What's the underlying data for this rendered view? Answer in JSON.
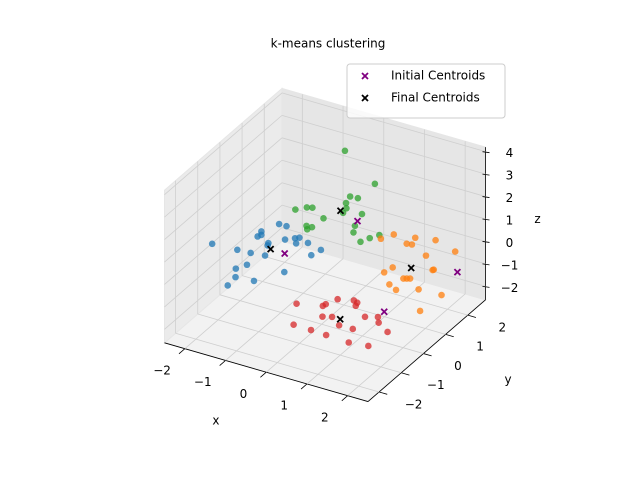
{
  "chart_data": {
    "type": "scatter3d",
    "title": "k-means clustering",
    "xlabel": "x",
    "ylabel": "y",
    "zlabel": "z",
    "xlim": [
      -2.5,
      2.5
    ],
    "ylim": [
      -2.5,
      2.8
    ],
    "zlim": [
      -2.6,
      4.2
    ],
    "xticks": [
      {
        "value": -2,
        "label": "−2"
      },
      {
        "value": -1,
        "label": "−1"
      },
      0,
      1,
      2
    ],
    "yticks": [
      {
        "value": -2,
        "label": "−2"
      },
      {
        "value": -1,
        "label": "−1"
      },
      0,
      1,
      2
    ],
    "zticks": [
      {
        "value": -2,
        "label": "−2"
      },
      {
        "value": -1,
        "label": "−1"
      },
      0,
      1,
      2,
      3,
      4
    ],
    "grid": true,
    "legend": "upper right",
    "series": [
      {
        "color": "#1f77b4",
        "marker": "o",
        "x": [
          -1.8,
          -1.5,
          -1.2,
          -0.9,
          -2.0,
          -1.3,
          -0.7,
          -1.6,
          -1.1,
          -0.5,
          -1.9,
          -1.4,
          -0.8,
          -1.0,
          -1.7,
          -0.6,
          -1.2,
          -2.2,
          -1.5,
          -0.9,
          -1.3,
          -0.4,
          -1.8,
          -1.1
        ],
        "y": [
          -0.5,
          0.2,
          -1.0,
          0.5,
          -0.2,
          0.8,
          -0.4,
          -1.3,
          0.1,
          0.3,
          0.6,
          -0.8,
          1.0,
          -0.6,
          0.4,
          -0.1,
          1.2,
          -0.9,
          -0.3,
          0.0,
          -1.5,
          0.7,
          0.9,
          -0.7
        ],
        "z": [
          0.2,
          -0.5,
          0.8,
          0.1,
          -1.0,
          0.4,
          -0.3,
          -0.6,
          1.2,
          0.5,
          -0.2,
          0.0,
          -0.8,
          0.9,
          0.3,
          1.0,
          -0.4,
          0.6,
          -1.2,
          0.7,
          0.1,
          -0.1,
          -0.7,
          1.4
        ]
      },
      {
        "color": "#2ca02c",
        "marker": "o",
        "x": [
          -0.5,
          0.0,
          -0.8,
          0.3,
          -0.2,
          -1.0,
          0.5,
          -0.4,
          0.1,
          -0.7,
          0.2,
          -0.1,
          -0.6,
          0.4,
          -0.3,
          -0.9,
          0.0,
          -1.3,
          0.6,
          -0.5
        ],
        "y": [
          1.0,
          1.5,
          0.8,
          1.2,
          2.0,
          1.4,
          0.9,
          1.7,
          1.1,
          0.6,
          1.8,
          1.3,
          2.2,
          0.7,
          1.6,
          1.0,
          2.4,
          1.2,
          1.5,
          0.5
        ],
        "z": [
          1.0,
          0.5,
          1.5,
          0.2,
          1.2,
          0.0,
          1.8,
          0.7,
          2.2,
          0.9,
          -0.2,
          1.4,
          0.6,
          1.1,
          3.6,
          0.3,
          1.6,
          0.8,
          0.4,
          1.9
        ]
      },
      {
        "color": "#ff7f0e",
        "marker": "o",
        "x": [
          1.2,
          1.8,
          1.5,
          2.1,
          0.9,
          1.6,
          2.3,
          1.3,
          1.9,
          1.0,
          1.7,
          2.0,
          1.4,
          2.4,
          1.1,
          1.6,
          2.2,
          0.8,
          1.8,
          1.5
        ],
        "y": [
          1.0,
          1.4,
          0.6,
          1.2,
          1.6,
          0.9,
          1.8,
          1.3,
          0.5,
          2.0,
          1.1,
          0.7,
          1.5,
          1.0,
          0.8,
          2.2,
          0.4,
          1.2,
          1.7,
          0.3
        ],
        "z": [
          -0.3,
          0.2,
          -0.8,
          -0.1,
          0.5,
          -0.5,
          0.3,
          -1.0,
          0.0,
          -0.2,
          1.2,
          -0.6,
          0.4,
          -0.9,
          -0.4,
          0.1,
          -1.2,
          0.6,
          -0.7,
          -0.3
        ]
      },
      {
        "color": "#d62728",
        "marker": "o",
        "x": [
          0.8,
          1.2,
          0.5,
          1.5,
          1.0,
          0.3,
          1.8,
          0.9,
          1.3,
          0.6,
          1.6,
          1.1,
          0.4,
          2.0,
          0.7,
          1.4,
          1.0,
          0.2,
          1.7,
          1.2
        ],
        "y": [
          -1.0,
          -0.6,
          -1.4,
          -0.8,
          -1.8,
          -0.5,
          -1.2,
          -0.2,
          -1.6,
          -0.9,
          -0.4,
          -1.3,
          -2.0,
          -0.7,
          -1.1,
          0.0,
          -0.3,
          -1.5,
          -1.9,
          -0.8
        ],
        "z": [
          -1.0,
          -0.5,
          -1.4,
          -0.8,
          -0.2,
          -1.2,
          -1.6,
          -0.9,
          -0.6,
          -2.0,
          -1.1,
          0.2,
          -0.7,
          -1.3,
          -0.4,
          -1.8,
          -1.0,
          -0.3,
          -0.9,
          -1.5
        ]
      },
      {
        "name": "Initial Centroids",
        "color": "purple",
        "marker": "x",
        "x": [
          -0.8,
          1.7,
          2.3,
          -0.1
        ],
        "y": [
          -0.2,
          -0.3,
          1.9,
          1.8
        ],
        "z": [
          0.3,
          -0.9,
          -0.7,
          0.4
        ]
      },
      {
        "name": "Final Centroids",
        "color": "black",
        "marker": "x",
        "x": [
          -1.2,
          -0.3,
          1.6,
          1.0
        ],
        "y": [
          -0.1,
          1.4,
          1.1,
          -1.0
        ],
        "z": [
          0.2,
          1.1,
          -0.2,
          -1.0
        ]
      }
    ]
  }
}
